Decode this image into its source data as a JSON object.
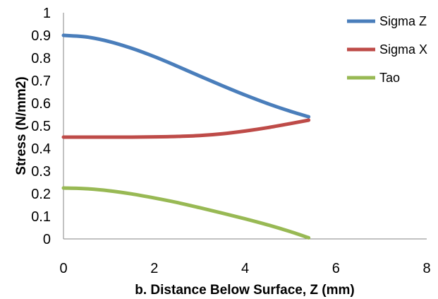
{
  "chart_data": {
    "type": "line",
    "title": "",
    "xlabel": "b. Distance  Below Surface, Z (mm)",
    "ylabel": "Stress (N/mm2)",
    "xlim": [
      0,
      8
    ],
    "ylim": [
      0,
      1
    ],
    "x_ticks": [
      "0",
      "2",
      "4",
      "6",
      "8"
    ],
    "y_ticks": [
      "0",
      "0.1",
      "0.2",
      "0.3",
      "0.4",
      "0.5",
      "0.6",
      "0.7",
      "0.8",
      "0.9",
      "1"
    ],
    "grid": false,
    "legend_position": "top-right",
    "series": [
      {
        "name": "Sigma Z",
        "color": "#4a7ebb",
        "x": [
          0,
          0.5,
          1,
          1.5,
          2,
          2.5,
          3,
          3.5,
          4,
          4.5,
          5,
          5.4
        ],
        "y": [
          0.9,
          0.893,
          0.873,
          0.843,
          0.806,
          0.764,
          0.72,
          0.677,
          0.636,
          0.598,
          0.564,
          0.54
        ]
      },
      {
        "name": "Sigma X",
        "color": "#be4b48",
        "x": [
          0,
          0.5,
          1,
          1.5,
          2,
          2.5,
          3,
          3.5,
          4,
          4.5,
          5,
          5.4
        ],
        "y": [
          0.45,
          0.45,
          0.45,
          0.45,
          0.451,
          0.453,
          0.457,
          0.465,
          0.477,
          0.492,
          0.51,
          0.525
        ]
      },
      {
        "name": "Tao",
        "color": "#98b954",
        "x": [
          0,
          0.5,
          1,
          1.5,
          2,
          2.5,
          3,
          3.5,
          4,
          4.5,
          5,
          5.4
        ],
        "y": [
          0.225,
          0.222,
          0.213,
          0.199,
          0.181,
          0.161,
          0.138,
          0.114,
          0.089,
          0.062,
          0.032,
          0.005
        ]
      }
    ]
  }
}
